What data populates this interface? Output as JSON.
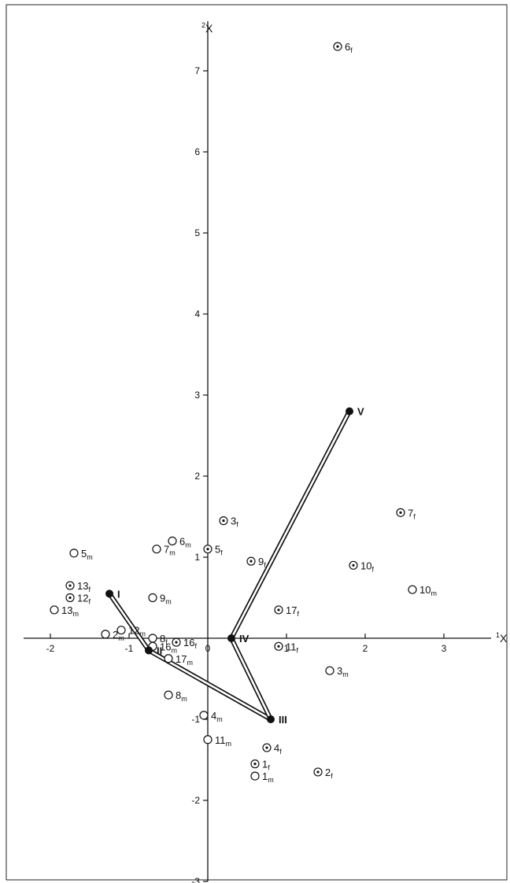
{
  "chart_data": {
    "type": "scatter",
    "x_axis_label": "1X",
    "y_axis_label": "2X",
    "xlim": [
      -2.4,
      3.6
    ],
    "ylim": [
      -3.0,
      7.65
    ],
    "x_ticks": [
      -2,
      -1,
      1,
      2,
      3
    ],
    "y_ticks": [
      -3,
      -2,
      -1,
      1,
      2,
      3,
      4,
      5,
      6,
      7
    ],
    "origin_label": "0",
    "points": [
      {
        "label": "1f",
        "x": 0.6,
        "y": -1.55,
        "marker": "dotted-circle"
      },
      {
        "label": "2f",
        "x": 1.4,
        "y": -1.65,
        "marker": "dotted-circle"
      },
      {
        "label": "3f",
        "x": 0.2,
        "y": 1.45,
        "marker": "dotted-circle"
      },
      {
        "label": "4f",
        "x": 0.75,
        "y": -1.35,
        "marker": "dotted-circle"
      },
      {
        "label": "5f",
        "x": 0.0,
        "y": 1.1,
        "marker": "dotted-circle"
      },
      {
        "label": "6f",
        "x": 1.65,
        "y": 7.3,
        "marker": "dotted-circle"
      },
      {
        "label": "7f",
        "x": 2.45,
        "y": 1.55,
        "marker": "dotted-circle"
      },
      {
        "label": "8f",
        "x": -0.7,
        "y": 0.0,
        "marker": "open-circle"
      },
      {
        "label": "9f",
        "x": 0.55,
        "y": 0.95,
        "marker": "dotted-circle"
      },
      {
        "label": "10f",
        "x": 1.85,
        "y": 0.9,
        "marker": "dotted-circle"
      },
      {
        "label": "11f",
        "x": 0.9,
        "y": -0.1,
        "marker": "dotted-circle"
      },
      {
        "label": "12f",
        "x": -1.75,
        "y": 0.5,
        "marker": "dotted-circle"
      },
      {
        "label": "13f",
        "x": -1.75,
        "y": 0.65,
        "marker": "dotted-circle"
      },
      {
        "label": "16f",
        "x": -0.4,
        "y": -0.05,
        "marker": "dotted-circle"
      },
      {
        "label": "17f",
        "x": 0.9,
        "y": 0.35,
        "marker": "dotted-circle"
      },
      {
        "label": "1m",
        "x": 0.6,
        "y": -1.7,
        "marker": "open-circle"
      },
      {
        "label": "2m",
        "x": -1.3,
        "y": 0.05,
        "marker": "open-circle"
      },
      {
        "label": "3m",
        "x": 1.55,
        "y": -0.4,
        "marker": "open-circle"
      },
      {
        "label": "4m",
        "x": -0.05,
        "y": -0.95,
        "marker": "open-circle"
      },
      {
        "label": "5m",
        "x": -1.7,
        "y": 1.05,
        "marker": "open-circle"
      },
      {
        "label": "6m",
        "x": -0.45,
        "y": 1.2,
        "marker": "open-circle"
      },
      {
        "label": "7m",
        "x": -0.65,
        "y": 1.1,
        "marker": "open-circle"
      },
      {
        "label": "8m",
        "x": -0.5,
        "y": -0.7,
        "marker": "open-circle"
      },
      {
        "label": "9m",
        "x": -0.7,
        "y": 0.5,
        "marker": "open-circle"
      },
      {
        "label": "10m",
        "x": 2.6,
        "y": 0.6,
        "marker": "open-circle"
      },
      {
        "label": "11m",
        "x": 0.0,
        "y": -1.25,
        "marker": "open-circle"
      },
      {
        "label": "12m",
        "x": -1.1,
        "y": 0.1,
        "marker": "open-circle"
      },
      {
        "label": "13m",
        "x": -1.95,
        "y": 0.35,
        "marker": "open-circle"
      },
      {
        "label": "16m",
        "x": -0.7,
        "y": -0.1,
        "marker": "open-circle"
      },
      {
        "label": "17m",
        "x": -0.5,
        "y": -0.25,
        "marker": "open-circle"
      }
    ],
    "centroids": [
      {
        "label": "I",
        "x": -1.25,
        "y": 0.55
      },
      {
        "label": "II",
        "x": -0.75,
        "y": -0.15
      },
      {
        "label": "III",
        "x": 0.8,
        "y": -1.0
      },
      {
        "label": "IV",
        "x": 0.3,
        "y": 0.0
      },
      {
        "label": "V",
        "x": 1.8,
        "y": 2.8
      }
    ],
    "links": [
      [
        "I",
        "II"
      ],
      [
        "II",
        "III"
      ],
      [
        "III",
        "IV"
      ],
      [
        "IV",
        "V"
      ]
    ]
  }
}
